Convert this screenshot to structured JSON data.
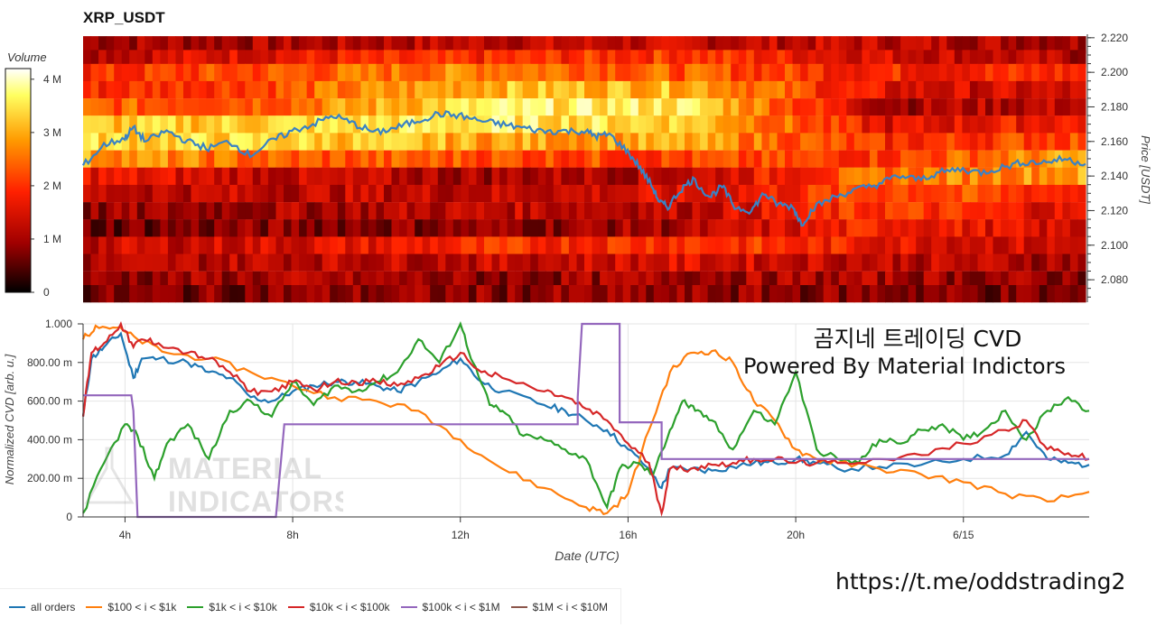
{
  "title": "XRP_USDT",
  "colorbar": {
    "title": "Volume",
    "ticks": [
      "4 M",
      "3 M",
      "2 M",
      "1 M",
      "0"
    ],
    "range": [
      0,
      4200000
    ]
  },
  "chart_data": [
    {
      "type": "heatmap",
      "title": "XRP_USDT",
      "ylabel": "Price [USDT]",
      "y_ticks": [
        "2.220",
        "2.200",
        "2.180",
        "2.160",
        "2.140",
        "2.120",
        "2.100",
        "2.080"
      ],
      "ylim": [
        2.067,
        2.222
      ],
      "x_range_hours": [
        3.0,
        27.0
      ],
      "colorscale": [
        "#000000",
        "#a00000",
        "#ff2000",
        "#ff9a00",
        "#ffff60",
        "#ffffff"
      ],
      "price_line": {
        "color": "#3a82c4",
        "x": [
          3.0,
          3.5,
          4.0,
          4.2,
          4.5,
          5.0,
          5.5,
          6.0,
          6.5,
          7.0,
          7.5,
          8.0,
          8.5,
          9.0,
          9.5,
          10.0,
          10.5,
          11.0,
          11.5,
          12.0,
          12.5,
          13.0,
          13.5,
          14.0,
          14.5,
          15.0,
          15.3,
          15.6,
          16.0,
          16.3,
          16.6,
          16.8,
          17.0,
          17.3,
          17.6,
          18.0,
          18.3,
          18.6,
          19.0,
          19.3,
          19.6,
          20.0,
          20.2,
          20.5,
          21.0,
          21.5,
          22.0,
          22.5,
          23.0,
          23.5,
          24.0,
          24.5,
          25.0,
          25.5,
          26.0,
          26.5,
          27.0
        ],
        "y": [
          2.146,
          2.158,
          2.162,
          2.168,
          2.16,
          2.166,
          2.16,
          2.156,
          2.16,
          2.152,
          2.16,
          2.166,
          2.17,
          2.175,
          2.17,
          2.165,
          2.168,
          2.172,
          2.176,
          2.175,
          2.172,
          2.17,
          2.168,
          2.166,
          2.166,
          2.166,
          2.163,
          2.164,
          2.155,
          2.146,
          2.135,
          2.125,
          2.122,
          2.132,
          2.138,
          2.128,
          2.134,
          2.122,
          2.12,
          2.13,
          2.124,
          2.122,
          2.112,
          2.122,
          2.128,
          2.132,
          2.135,
          2.14,
          2.138,
          2.142,
          2.144,
          2.142,
          2.145,
          2.148,
          2.148,
          2.15,
          2.147
        ]
      },
      "volume_bands": [
        {
          "price": 2.216,
          "levels": [
            0.25,
            0.25,
            0.3,
            0.3,
            0.3,
            0.25
          ]
        },
        {
          "price": 2.208,
          "levels": [
            0.3,
            0.4,
            0.45,
            0.5,
            0.35,
            0.25
          ]
        },
        {
          "price": 2.2,
          "levels": [
            0.45,
            0.55,
            0.65,
            0.55,
            0.45,
            0.45
          ]
        },
        {
          "price": 2.19,
          "levels": [
            0.45,
            0.55,
            0.75,
            0.75,
            0.35,
            0.3
          ]
        },
        {
          "price": 2.18,
          "levels": [
            0.55,
            0.6,
            0.85,
            0.85,
            0.25,
            0.3
          ]
        },
        {
          "price": 2.17,
          "levels": [
            0.75,
            0.8,
            0.85,
            0.8,
            0.35,
            0.45
          ]
        },
        {
          "price": 2.16,
          "levels": [
            0.8,
            0.8,
            0.7,
            0.7,
            0.45,
            0.55
          ]
        },
        {
          "price": 2.15,
          "levels": [
            0.7,
            0.55,
            0.55,
            0.5,
            0.5,
            0.7
          ]
        },
        {
          "price": 2.14,
          "levels": [
            0.4,
            0.3,
            0.25,
            0.3,
            0.6,
            0.7
          ]
        },
        {
          "price": 2.13,
          "levels": [
            0.3,
            0.3,
            0.3,
            0.35,
            0.55,
            0.45
          ]
        },
        {
          "price": 2.12,
          "levels": [
            0.2,
            0.25,
            0.3,
            0.3,
            0.5,
            0.35
          ]
        },
        {
          "price": 2.11,
          "levels": [
            0.15,
            0.2,
            0.2,
            0.25,
            0.45,
            0.3
          ]
        },
        {
          "price": 2.1,
          "levels": [
            0.3,
            0.35,
            0.45,
            0.5,
            0.4,
            0.3
          ]
        },
        {
          "price": 2.09,
          "levels": [
            0.25,
            0.3,
            0.3,
            0.35,
            0.3,
            0.25
          ]
        },
        {
          "price": 2.08,
          "levels": [
            0.2,
            0.25,
            0.2,
            0.25,
            0.25,
            0.2
          ]
        },
        {
          "price": 2.072,
          "levels": [
            0.15,
            0.2,
            0.2,
            0.2,
            0.2,
            0.15
          ]
        }
      ]
    },
    {
      "type": "line",
      "xlabel": "Date (UTC)",
      "ylabel": "Normalized CVD [arb. u.]",
      "x_ticks": [
        "4h",
        "8h",
        "12h",
        "16h",
        "20h",
        "6/15"
      ],
      "x_tick_hours": [
        4,
        8,
        12,
        16,
        20,
        24
      ],
      "y_ticks": [
        "1.000",
        "800.00 m",
        "600.00 m",
        "400.00 m",
        "200.00 m",
        "0"
      ],
      "ylim": [
        0,
        1.0
      ],
      "xlim": [
        3.0,
        27.0
      ],
      "series": [
        {
          "name": "all orders",
          "color": "#1f77b4",
          "x": [
            3.0,
            3.2,
            3.5,
            3.9,
            4.2,
            4.4,
            4.8,
            5.5,
            6.0,
            6.5,
            7.0,
            7.5,
            8.0,
            8.5,
            9.0,
            9.5,
            10.0,
            10.5,
            11.0,
            11.5,
            12.0,
            12.5,
            13.0,
            14.0,
            14.5,
            15.0,
            15.5,
            16.0,
            16.5,
            16.8,
            17.0,
            17.5,
            18.0,
            18.5,
            19.0,
            19.5,
            20.0,
            20.5,
            21.0,
            22.0,
            23.0,
            24.0,
            25.0,
            25.5,
            26.0,
            26.5,
            27.0
          ],
          "y": [
            0.52,
            0.82,
            0.88,
            0.95,
            0.72,
            0.82,
            0.82,
            0.8,
            0.75,
            0.72,
            0.62,
            0.6,
            0.65,
            0.68,
            0.7,
            0.7,
            0.68,
            0.65,
            0.7,
            0.75,
            0.82,
            0.7,
            0.65,
            0.58,
            0.55,
            0.5,
            0.45,
            0.35,
            0.25,
            0.15,
            0.25,
            0.25,
            0.24,
            0.26,
            0.28,
            0.28,
            0.3,
            0.28,
            0.25,
            0.26,
            0.27,
            0.3,
            0.32,
            0.44,
            0.3,
            0.28,
            0.27
          ]
        },
        {
          "name": "$100 < i < $1k",
          "color": "#ff7f0e",
          "x": [
            3.0,
            3.3,
            3.8,
            4.3,
            5.0,
            6.0,
            7.0,
            8.0,
            9.0,
            10.0,
            11.0,
            12.0,
            13.0,
            14.0,
            15.0,
            15.5,
            16.0,
            16.5,
            17.0,
            17.5,
            18.0,
            18.5,
            19.0,
            19.5,
            20.0,
            20.5,
            21.0,
            22.0,
            23.0,
            24.0,
            25.0,
            26.0,
            27.0
          ],
          "y": [
            0.92,
            0.99,
            0.98,
            0.92,
            0.85,
            0.82,
            0.75,
            0.68,
            0.62,
            0.6,
            0.55,
            0.4,
            0.25,
            0.15,
            0.05,
            0.02,
            0.12,
            0.45,
            0.75,
            0.85,
            0.86,
            0.8,
            0.6,
            0.5,
            0.35,
            0.3,
            0.28,
            0.25,
            0.22,
            0.18,
            0.12,
            0.08,
            0.13
          ]
        },
        {
          "name": "$1k < i < $10k",
          "color": "#2ca02c",
          "x": [
            3.0,
            3.5,
            4.0,
            4.3,
            4.7,
            5.0,
            5.5,
            6.0,
            6.5,
            7.0,
            7.5,
            8.0,
            8.5,
            9.0,
            9.5,
            10.0,
            10.5,
            11.0,
            11.5,
            12.0,
            12.3,
            12.7,
            13.0,
            13.5,
            14.0,
            14.5,
            15.0,
            15.5,
            15.8,
            16.2,
            16.6,
            17.0,
            17.3,
            17.6,
            18.0,
            18.5,
            19.0,
            19.5,
            20.0,
            20.5,
            21.0,
            21.5,
            22.0,
            22.5,
            23.0,
            23.5,
            24.0,
            24.5,
            25.0,
            25.5,
            26.0,
            26.5,
            27.0
          ],
          "y": [
            0.02,
            0.28,
            0.48,
            0.42,
            0.2,
            0.38,
            0.48,
            0.3,
            0.55,
            0.6,
            0.52,
            0.7,
            0.58,
            0.68,
            0.65,
            0.7,
            0.75,
            0.92,
            0.8,
            1.0,
            0.8,
            0.58,
            0.55,
            0.42,
            0.4,
            0.35,
            0.3,
            0.05,
            0.25,
            0.28,
            0.22,
            0.45,
            0.6,
            0.55,
            0.5,
            0.35,
            0.55,
            0.48,
            0.75,
            0.35,
            0.3,
            0.28,
            0.4,
            0.38,
            0.45,
            0.48,
            0.4,
            0.45,
            0.55,
            0.4,
            0.55,
            0.62,
            0.55
          ]
        },
        {
          "name": "$10k < i < $100k",
          "color": "#d62728",
          "x": [
            3.0,
            3.2,
            3.5,
            3.9,
            4.2,
            4.4,
            4.8,
            5.5,
            6.0,
            6.5,
            7.0,
            7.5,
            8.0,
            8.5,
            9.0,
            9.5,
            10.0,
            10.5,
            11.0,
            11.5,
            12.0,
            12.5,
            13.0,
            14.0,
            14.5,
            15.0,
            15.5,
            16.0,
            16.5,
            16.8,
            17.0,
            17.5,
            18.0,
            18.5,
            19.0,
            19.5,
            20.0,
            20.5,
            21.0,
            22.0,
            23.0,
            24.0,
            25.0,
            25.5,
            26.0,
            26.5,
            27.0
          ],
          "y": [
            0.52,
            0.85,
            0.9,
            1.0,
            0.88,
            0.92,
            0.9,
            0.85,
            0.82,
            0.75,
            0.65,
            0.65,
            0.7,
            0.66,
            0.7,
            0.7,
            0.7,
            0.68,
            0.72,
            0.78,
            0.85,
            0.75,
            0.72,
            0.65,
            0.62,
            0.56,
            0.5,
            0.38,
            0.28,
            0.02,
            0.25,
            0.25,
            0.27,
            0.28,
            0.3,
            0.3,
            0.28,
            0.28,
            0.28,
            0.3,
            0.32,
            0.38,
            0.45,
            0.5,
            0.35,
            0.33,
            0.3
          ]
        },
        {
          "name": "$100k < i < $1M",
          "color": "#9467bd",
          "x": [
            3.0,
            4.15,
            4.2,
            4.3,
            7.6,
            7.8,
            7.8,
            14.8,
            14.8,
            14.9,
            15.8,
            15.8,
            16.8,
            16.8,
            27.0
          ],
          "y": [
            0.63,
            0.63,
            0.55,
            0.0,
            0.0,
            0.48,
            0.48,
            0.48,
            0.62,
            1.0,
            1.0,
            0.49,
            0.49,
            0.3,
            0.3
          ]
        },
        {
          "name": "$1M < i < $10M",
          "color": "#8c564b",
          "x": [],
          "y": []
        }
      ]
    }
  ],
  "heatmap_axis": {
    "ylabel": "Price [USDT]",
    "ticks": [
      "2.220",
      "2.200",
      "2.180",
      "2.160",
      "2.140",
      "2.120",
      "2.100",
      "2.080"
    ]
  },
  "cvd_axis": {
    "ylabel": "Normalized CVD [arb. u.]",
    "xlabel": "Date (UTC)",
    "y_ticks": [
      "1.000",
      "800.00 m",
      "600.00 m",
      "400.00 m",
      "200.00 m",
      "0"
    ],
    "x_ticks": [
      "4h",
      "8h",
      "12h",
      "16h",
      "20h",
      "6/15"
    ]
  },
  "watermark": {
    "line1": "MATERIAL",
    "line2": "INDICATORS"
  },
  "overlay": {
    "line1": "곰지네 트레이딩 CVD",
    "line2": "Powered By Material Indictors"
  },
  "url": "https://t.me/oddstrading2",
  "legend": [
    {
      "label": "all orders",
      "color": "#1f77b4"
    },
    {
      "label": "$100 < i < $1k",
      "color": "#ff7f0e"
    },
    {
      "label": "$1k < i < $10k",
      "color": "#2ca02c"
    },
    {
      "label": "$10k < i < $100k",
      "color": "#d62728"
    },
    {
      "label": "$100k < i < $1M",
      "color": "#9467bd"
    },
    {
      "label": "$1M < i < $10M",
      "color": "#8c564b"
    }
  ]
}
